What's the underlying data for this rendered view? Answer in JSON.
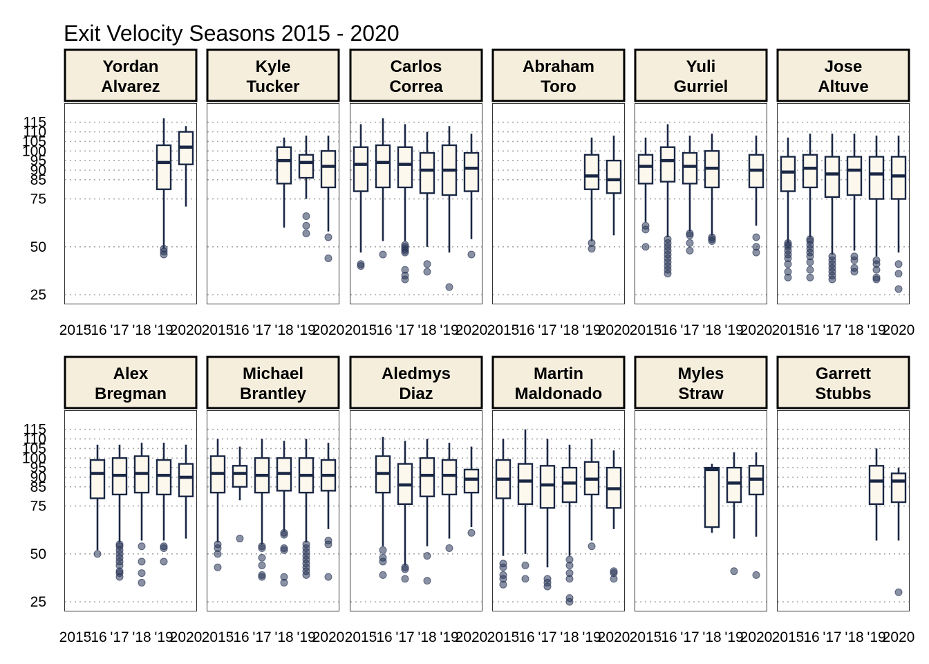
{
  "chart_data": {
    "type": "boxplot",
    "title": "Exit Velocity Seasons 2015 - 2020",
    "xlabel": "",
    "ylabel": "",
    "x_categories": [
      "2015",
      "'16",
      "'17",
      "'18",
      "'19",
      "2020"
    ],
    "ylim": [
      20,
      125
    ],
    "y_ticks": [
      25,
      50,
      75,
      85,
      90,
      95,
      100,
      105,
      110,
      115
    ],
    "grid": "horizontal dotted",
    "facet_layout": {
      "rows": 2,
      "cols": 6
    },
    "colors": {
      "box_fill": "#fcf8ee",
      "box_line": "#1a2744",
      "strip_fill": "#f5eedd",
      "outlier": "#2a3658",
      "grid": "#a8a8a8"
    },
    "panels": [
      {
        "player": "Yordan Alvarez",
        "name_lines": [
          "Yordan",
          "Alvarez"
        ],
        "boxes": [
          {
            "season": "'19",
            "whisker_low": 49,
            "q1": 80,
            "median": 94,
            "q3": 103,
            "whisker_high": 117,
            "outliers": [
              46,
              47.5,
              49
            ]
          },
          {
            "season": "2020",
            "whisker_low": 71,
            "q1": 93,
            "median": 102,
            "q3": 110,
            "whisker_high": 113,
            "outliers": []
          }
        ]
      },
      {
        "player": "Kyle Tucker",
        "name_lines": [
          "Kyle",
          "Tucker"
        ],
        "boxes": [
          {
            "season": "'18",
            "whisker_low": 60,
            "q1": 83,
            "median": 95,
            "q3": 102,
            "whisker_high": 107,
            "outliers": []
          },
          {
            "season": "'19",
            "whisker_low": 75,
            "q1": 86,
            "median": 94,
            "q3": 98,
            "whisker_high": 108,
            "outliers": [
              57,
              61,
              66
            ]
          },
          {
            "season": "2020",
            "whisker_low": 58,
            "q1": 81,
            "median": 92,
            "q3": 100,
            "whisker_high": 108,
            "outliers": [
              44,
              55
            ]
          }
        ]
      },
      {
        "player": "Carlos Correa",
        "name_lines": [
          "Carlos",
          "Correa"
        ],
        "boxes": [
          {
            "season": "2015",
            "whisker_low": 47,
            "q1": 79,
            "median": 93,
            "q3": 102,
            "whisker_high": 114,
            "outliers": [
              40,
              41
            ]
          },
          {
            "season": "'16",
            "whisker_low": 53,
            "q1": 81,
            "median": 94,
            "q3": 103,
            "whisker_high": 117,
            "outliers": [
              46
            ]
          },
          {
            "season": "'17",
            "whisker_low": 53,
            "q1": 81,
            "median": 93,
            "q3": 102,
            "whisker_high": 114,
            "outliers": [
              33,
              35,
              38,
              47,
              48,
              49,
              50,
              51
            ]
          },
          {
            "season": "'18",
            "whisker_low": 50,
            "q1": 78,
            "median": 90,
            "q3": 99,
            "whisker_high": 110,
            "outliers": [
              37,
              41
            ]
          },
          {
            "season": "'19",
            "whisker_low": 47,
            "q1": 77,
            "median": 90,
            "q3": 103,
            "whisker_high": 113,
            "outliers": [
              29
            ]
          },
          {
            "season": "2020",
            "whisker_low": 54,
            "q1": 79,
            "median": 91,
            "q3": 99,
            "whisker_high": 109,
            "outliers": [
              46
            ]
          }
        ]
      },
      {
        "player": "Abraham Toro",
        "name_lines": [
          "Abraham",
          "Toro"
        ],
        "boxes": [
          {
            "season": "'19",
            "whisker_low": 53,
            "q1": 80,
            "median": 87,
            "q3": 98,
            "whisker_high": 107,
            "outliers": [
              49,
              52
            ]
          },
          {
            "season": "2020",
            "whisker_low": 56,
            "q1": 78,
            "median": 85,
            "q3": 95,
            "whisker_high": 108,
            "outliers": []
          }
        ]
      },
      {
        "player": "Yuli Gurriel",
        "name_lines": [
          "Yuli",
          "Gurriel"
        ],
        "boxes": [
          {
            "season": "2015",
            "whisker_low": 63,
            "q1": 83,
            "median": 92,
            "q3": 98,
            "whisker_high": 107,
            "outliers": [
              50,
              59,
              61
            ]
          },
          {
            "season": "'16",
            "whisker_low": 55,
            "q1": 84,
            "median": 95,
            "q3": 102,
            "whisker_high": 114,
            "outliers": [
              36,
              38,
              40,
              42,
              44,
              46,
              48,
              50,
              52,
              54
            ]
          },
          {
            "season": "'17",
            "whisker_low": 58,
            "q1": 83,
            "median": 92,
            "q3": 99,
            "whisker_high": 108,
            "outliers": [
              48,
              52,
              56,
              57
            ]
          },
          {
            "season": "'18",
            "whisker_low": 56,
            "q1": 81,
            "median": 91,
            "q3": 100,
            "whisker_high": 109,
            "outliers": [
              53,
              54,
              55
            ]
          },
          {
            "season": "2020",
            "whisker_low": 61,
            "q1": 81,
            "median": 90,
            "q3": 98,
            "whisker_high": 108,
            "outliers": [
              47,
              50,
              55
            ]
          }
        ]
      },
      {
        "player": "Jose Altuve",
        "name_lines": [
          "Jose",
          "Altuve"
        ],
        "boxes": [
          {
            "season": "2015",
            "whisker_low": 52,
            "q1": 79,
            "median": 89,
            "q3": 97,
            "whisker_high": 107,
            "outliers": [
              34,
              37,
              41,
              44,
              46,
              48,
              50,
              51,
              52
            ]
          },
          {
            "season": "'16",
            "whisker_low": 55,
            "q1": 81,
            "median": 91,
            "q3": 98,
            "whisker_high": 109,
            "outliers": [
              34,
              38,
              42,
              45,
              47,
              49,
              51,
              53,
              54
            ]
          },
          {
            "season": "'17",
            "whisker_low": 46,
            "q1": 76,
            "median": 88,
            "q3": 97,
            "whisker_high": 109,
            "outliers": [
              33,
              35,
              37,
              39,
              41,
              43,
              45
            ]
          },
          {
            "season": "'18",
            "whisker_low": 48,
            "q1": 77,
            "median": 90,
            "q3": 97,
            "whisker_high": 109,
            "outliers": [
              37,
              39,
              43,
              45
            ]
          },
          {
            "season": "'19",
            "whisker_low": 45,
            "q1": 75,
            "median": 88,
            "q3": 97,
            "whisker_high": 108,
            "outliers": [
              33,
              34,
              38,
              41,
              43
            ]
          },
          {
            "season": "2020",
            "whisker_low": 47,
            "q1": 75,
            "median": 87,
            "q3": 97,
            "whisker_high": 108,
            "outliers": [
              28,
              36,
              41
            ]
          }
        ]
      },
      {
        "player": "Alex Bregman",
        "name_lines": [
          "Alex",
          "Bregman"
        ],
        "boxes": [
          {
            "season": "'16",
            "whisker_low": 52,
            "q1": 79,
            "median": 92,
            "q3": 99,
            "whisker_high": 107,
            "outliers": [
              50
            ]
          },
          {
            "season": "'17",
            "whisker_low": 56,
            "q1": 81,
            "median": 91,
            "q3": 100,
            "whisker_high": 107,
            "outliers": [
              38,
              40,
              41,
              44,
              46,
              48,
              50,
              52,
              54,
              55
            ]
          },
          {
            "season": "'18",
            "whisker_low": 57,
            "q1": 82,
            "median": 92,
            "q3": 101,
            "whisker_high": 108,
            "outliers": [
              35,
              40,
              46,
              54
            ]
          },
          {
            "season": "'19",
            "whisker_low": 57,
            "q1": 81,
            "median": 91,
            "q3": 99,
            "whisker_high": 108,
            "outliers": [
              46,
              53,
              54
            ]
          },
          {
            "season": "2020",
            "whisker_low": 58,
            "q1": 80,
            "median": 90,
            "q3": 97,
            "whisker_high": 107,
            "outliers": []
          }
        ]
      },
      {
        "player": "Michael Brantley",
        "name_lines": [
          "Michael",
          "Brantley"
        ],
        "boxes": [
          {
            "season": "2015",
            "whisker_low": 56,
            "q1": 82,
            "median": 92,
            "q3": 101,
            "whisker_high": 110,
            "outliers": [
              43,
              50,
              53,
              55
            ]
          },
          {
            "season": "'16",
            "whisker_low": 78,
            "q1": 85,
            "median": 92,
            "q3": 96,
            "whisker_high": 106,
            "outliers": [
              58
            ]
          },
          {
            "season": "'17",
            "whisker_low": 55,
            "q1": 82,
            "median": 91,
            "q3": 100,
            "whisker_high": 110,
            "outliers": [
              38,
              39,
              44,
              48,
              53,
              54
            ]
          },
          {
            "season": "'18",
            "whisker_low": 62,
            "q1": 83,
            "median": 92,
            "q3": 100,
            "whisker_high": 109,
            "outliers": [
              35,
              38,
              52,
              53,
              60,
              61
            ]
          },
          {
            "season": "'19",
            "whisker_low": 56,
            "q1": 82,
            "median": 91,
            "q3": 100,
            "whisker_high": 110,
            "outliers": [
              39,
              41,
              43,
              45,
              47,
              49,
              51,
              53,
              55
            ]
          },
          {
            "season": "2020",
            "whisker_low": 63,
            "q1": 83,
            "median": 91,
            "q3": 99,
            "whisker_high": 108,
            "outliers": [
              38,
              55,
              57
            ]
          }
        ]
      },
      {
        "player": "Aledmys Diaz",
        "name_lines": [
          "Aledmys",
          "Diaz"
        ],
        "boxes": [
          {
            "season": "'16",
            "whisker_low": 54,
            "q1": 82,
            "median": 92,
            "q3": 101,
            "whisker_high": 111,
            "outliers": [
              39,
              46,
              48,
              52
            ]
          },
          {
            "season": "'17",
            "whisker_low": 44,
            "q1": 76,
            "median": 86,
            "q3": 97,
            "whisker_high": 109,
            "outliers": [
              37,
              42,
              43
            ]
          },
          {
            "season": "'18",
            "whisker_low": 54,
            "q1": 80,
            "median": 91,
            "q3": 100,
            "whisker_high": 110,
            "outliers": [
              36,
              49
            ]
          },
          {
            "season": "'19",
            "whisker_low": 58,
            "q1": 81,
            "median": 91,
            "q3": 99,
            "whisker_high": 108,
            "outliers": [
              53
            ]
          },
          {
            "season": "2020",
            "whisker_low": 64,
            "q1": 82,
            "median": 89,
            "q3": 94,
            "whisker_high": 106,
            "outliers": [
              61
            ]
          }
        ]
      },
      {
        "player": "Martin Maldonado",
        "name_lines": [
          "Martin",
          "Maldonado"
        ],
        "boxes": [
          {
            "season": "2015",
            "whisker_low": 49,
            "q1": 79,
            "median": 89,
            "q3": 99,
            "whisker_high": 110,
            "outliers": [
              34,
              37,
              39,
              43,
              45
            ]
          },
          {
            "season": "'16",
            "whisker_low": 50,
            "q1": 76,
            "median": 88,
            "q3": 97,
            "whisker_high": 115,
            "outliers": [
              37,
              44
            ]
          },
          {
            "season": "'17",
            "whisker_low": 43,
            "q1": 74,
            "median": 86,
            "q3": 96,
            "whisker_high": 110,
            "outliers": [
              33,
              35,
              37
            ]
          },
          {
            "season": "'18",
            "whisker_low": 49,
            "q1": 77,
            "median": 87,
            "q3": 95,
            "whisker_high": 107,
            "outliers": [
              25,
              27,
              37,
              40,
              44,
              47
            ]
          },
          {
            "season": "'19",
            "whisker_low": 57,
            "q1": 81,
            "median": 89,
            "q3": 98,
            "whisker_high": 110,
            "outliers": [
              54
            ]
          },
          {
            "season": "2020",
            "whisker_low": 63,
            "q1": 74,
            "median": 84,
            "q3": 95,
            "whisker_high": 104,
            "outliers": [
              37,
              40,
              41
            ]
          }
        ]
      },
      {
        "player": "Myles Straw",
        "name_lines": [
          "Myles",
          "Straw"
        ],
        "boxes": [
          {
            "season": "'18",
            "whisker_low": 61,
            "q1": 64,
            "median": 94,
            "q3": 95,
            "whisker_high": 97,
            "outliers": []
          },
          {
            "season": "'19",
            "whisker_low": 58,
            "q1": 77,
            "median": 87,
            "q3": 95,
            "whisker_high": 103,
            "outliers": [
              41
            ]
          },
          {
            "season": "2020",
            "whisker_low": 59,
            "q1": 81,
            "median": 89,
            "q3": 96,
            "whisker_high": 103,
            "outliers": [
              39
            ]
          }
        ]
      },
      {
        "player": "Garrett Stubbs",
        "name_lines": [
          "Garrett",
          "Stubbs"
        ],
        "boxes": [
          {
            "season": "'19",
            "whisker_low": 57,
            "q1": 76,
            "median": 88,
            "q3": 96,
            "whisker_high": 105,
            "outliers": []
          },
          {
            "season": "2020",
            "whisker_low": 57,
            "q1": 77,
            "median": 88,
            "q3": 92,
            "whisker_high": 95,
            "outliers": [
              30
            ]
          }
        ]
      }
    ]
  }
}
